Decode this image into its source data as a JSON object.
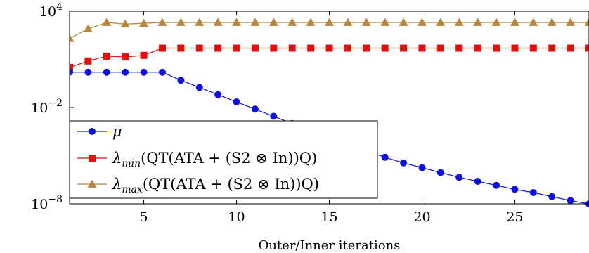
{
  "chart_data": {
    "type": "line",
    "xlabel": "Outer/Inner iterations",
    "ylabel": "",
    "xlim": [
      1,
      29
    ],
    "ylim_log10": [
      -8,
      4
    ],
    "y_scale": "log",
    "grid": false,
    "legend_position": "lower-left",
    "x_ticks": [
      5,
      10,
      15,
      20,
      25
    ],
    "y_ticks": [
      {
        "base": "10",
        "exp": "4",
        "value_log10": 4
      },
      {
        "base": "10",
        "exp": "−2",
        "value_log10": -2
      },
      {
        "base": "10",
        "exp": "−8",
        "value_log10": -8
      }
    ],
    "x": [
      1,
      2,
      3,
      4,
      5,
      6,
      7,
      8,
      9,
      10,
      11,
      12,
      13,
      14,
      15,
      16,
      17,
      18,
      19,
      20,
      21,
      22,
      23,
      24,
      25,
      26,
      27,
      28,
      29
    ],
    "series": [
      {
        "name": "μ",
        "legend": {
          "main": "μ",
          "sub": "",
          "rest": ""
        },
        "color": "#1010e0",
        "marker": "circle",
        "y_log10": [
          0.2,
          0.2,
          0.2,
          0.2,
          0.2,
          0.2,
          -0.3,
          -0.75,
          -1.2,
          -1.65,
          -2.1,
          -2.55,
          -3.0,
          -3.4,
          -3.85,
          -4.3,
          -4.7,
          -5.1,
          -5.45,
          -5.75,
          -6.05,
          -6.35,
          -6.6,
          -6.85,
          -7.1,
          -7.3,
          -7.55,
          -7.8,
          -8.0
        ]
      },
      {
        "name": "λmin(Q^T(A^T A + (S^2 ⊗ I_n))Q)",
        "legend": {
          "main": "λ",
          "sub": "min",
          "rest": "(QT(ATA + (S2 ⊗ In))Q)"
        },
        "color": "#e01010",
        "marker": "square",
        "y_log10": [
          0.5,
          0.9,
          1.2,
          1.15,
          1.25,
          1.7,
          1.7,
          1.7,
          1.7,
          1.7,
          1.7,
          1.7,
          1.7,
          1.7,
          1.7,
          1.7,
          1.7,
          1.7,
          1.7,
          1.7,
          1.7,
          1.7,
          1.7,
          1.7,
          1.7,
          1.7,
          1.7,
          1.7,
          1.7
        ]
      },
      {
        "name": "λmax(Q^T(A^T A + (S^2 ⊗ I_n))Q)",
        "legend": {
          "main": "λ",
          "sub": "max",
          "rest": "(QT(ATA + (S2 ⊗ In))Q)"
        },
        "color": "#b5873f",
        "marker": "triangle",
        "y_log10": [
          2.3,
          2.9,
          3.3,
          3.2,
          3.25,
          3.3,
          3.3,
          3.3,
          3.3,
          3.3,
          3.3,
          3.3,
          3.3,
          3.3,
          3.3,
          3.3,
          3.3,
          3.3,
          3.3,
          3.3,
          3.3,
          3.3,
          3.3,
          3.3,
          3.3,
          3.3,
          3.3,
          3.3,
          3.3
        ]
      }
    ]
  }
}
